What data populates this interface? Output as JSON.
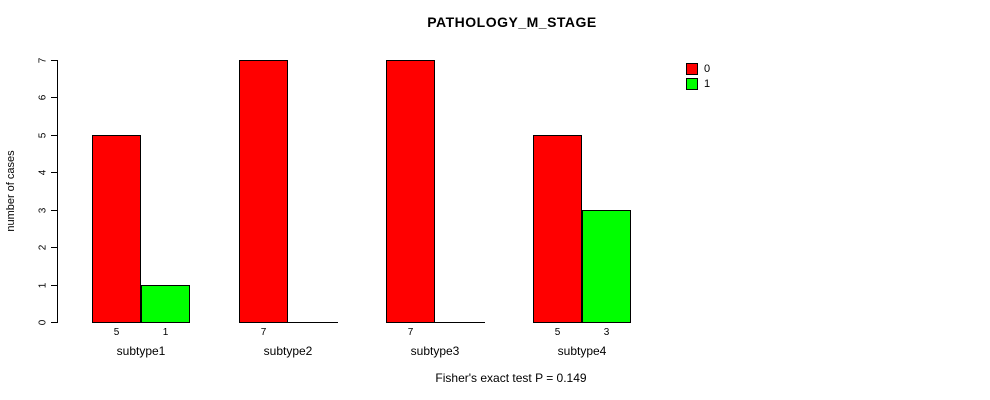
{
  "title": "PATHOLOGY_M_STAGE",
  "footer": "Fisher's exact test P = 0.149",
  "colors": {
    "series0": "#ff0000",
    "series1": "#00ff00",
    "axis": "#000000",
    "background": "#ffffff"
  },
  "legend": {
    "position": "top-right",
    "entries": [
      {
        "label": "0",
        "color": "#ff0000"
      },
      {
        "label": "1",
        "color": "#00ff00"
      }
    ]
  },
  "chart_data": {
    "type": "bar",
    "title": "PATHOLOGY_M_STAGE",
    "categories": [
      "subtype1",
      "subtype2",
      "subtype3",
      "subtype4"
    ],
    "series": [
      {
        "name": "0",
        "color": "#ff0000",
        "values": [
          5,
          7,
          7,
          5
        ]
      },
      {
        "name": "1",
        "color": "#00ff00",
        "values": [
          1,
          0,
          0,
          3
        ]
      }
    ],
    "bar_count_labels": [
      [
        "5",
        "1"
      ],
      [
        "7",
        ""
      ],
      [
        "7",
        ""
      ],
      [
        "5",
        "3"
      ]
    ],
    "xlabel": "",
    "ylabel": "number of cases",
    "ylim": [
      0,
      7
    ],
    "yticks": [
      "0",
      "1",
      "2",
      "3",
      "4",
      "5",
      "6",
      "7"
    ],
    "grid": false,
    "legend_position": "top-right",
    "annotation": "Fisher's exact test P = 0.149"
  }
}
